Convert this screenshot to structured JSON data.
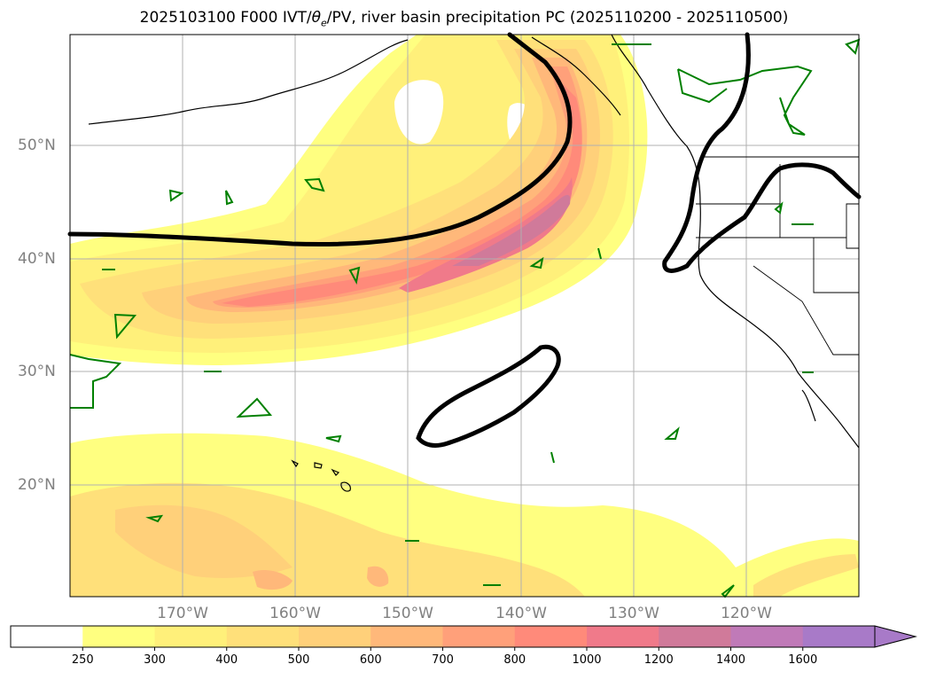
{
  "title": {
    "prefix": "2025103100 F000 IVT/",
    "theta": "θ",
    "theta_sub": "e",
    "suffix": "/PV, river basin precipitation PC (2025110200 - 2025110500)"
  },
  "map": {
    "lat_labels": [
      "50°N",
      "40°N",
      "30°N",
      "20°N"
    ],
    "lon_labels": [
      "170°W",
      "160°W",
      "150°W",
      "140°W",
      "130°W",
      "120°W"
    ],
    "contour_colors": {
      "ivt_line": "#000000",
      "pv_line": "#008000",
      "coast": "#000000",
      "grid": "#b0b0b0"
    }
  },
  "colorbar": {
    "ticks": [
      "250",
      "300",
      "400",
      "500",
      "600",
      "700",
      "800",
      "1000",
      "1200",
      "1400",
      "1600"
    ],
    "colors": [
      "#ffffff",
      "#ffff80",
      "#fff07a",
      "#ffe07a",
      "#ffd07a",
      "#ffb87a",
      "#ffa07a",
      "#ff8a7a",
      "#f07a8a",
      "#d07a9a",
      "#c07ab8",
      "#a87ac8"
    ]
  }
}
